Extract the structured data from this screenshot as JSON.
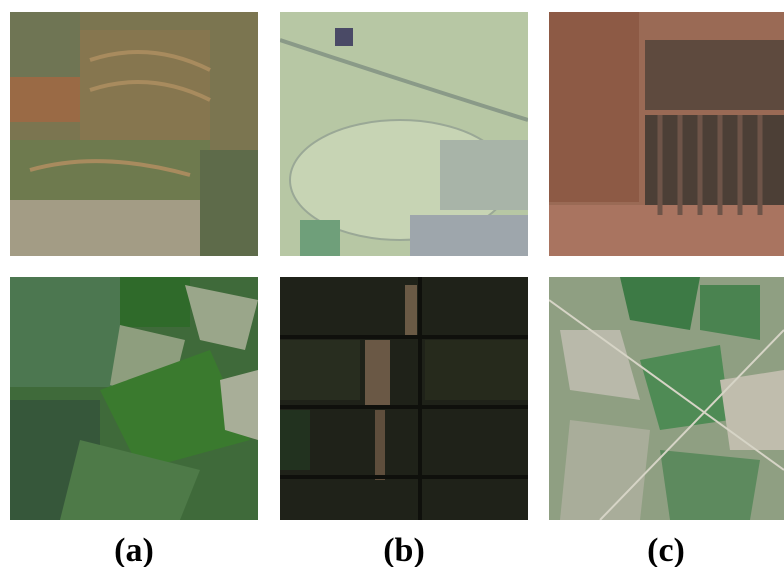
{
  "figure": {
    "panels": [
      {
        "label": "(a)"
      },
      {
        "label": "(b)"
      },
      {
        "label": "(c)"
      }
    ]
  }
}
